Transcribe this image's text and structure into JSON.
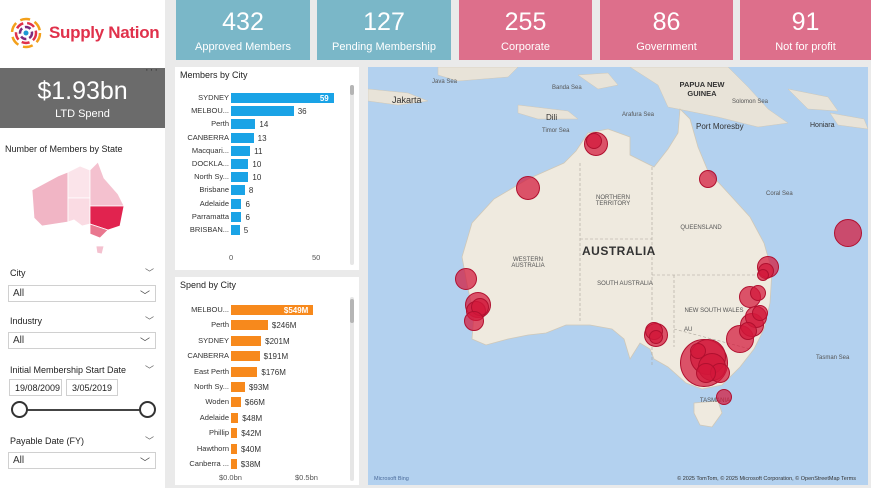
{
  "brand": {
    "name": "Supply Nation"
  },
  "ltd": {
    "value": "$1.93bn",
    "label": "LTD Spend",
    "menu": "···"
  },
  "kpis": [
    {
      "value": "432",
      "label": "Approved Members",
      "color": "#7ab7c8"
    },
    {
      "value": "127",
      "label": "Pending Membership",
      "color": "#7ab7c8"
    },
    {
      "value": "255",
      "label": "Corporate",
      "color": "#dd6f8b"
    },
    {
      "value": "86",
      "label": "Government",
      "color": "#dd6f8b"
    },
    {
      "value": "91",
      "label": "Not for profit",
      "color": "#dd6f8b"
    }
  ],
  "state_map": {
    "title": "Number of Members by State"
  },
  "slicers": {
    "city": {
      "label": "City",
      "value": "All"
    },
    "industry": {
      "label": "Industry",
      "value": "All"
    },
    "membership_date": {
      "label": "Initial Membership Start Date",
      "start": "19/08/2009",
      "end": "3/05/2019"
    },
    "payable_date": {
      "label": "Payable Date (FY)",
      "value": "All"
    }
  },
  "members_by_city": {
    "title": "Members by City",
    "axis_ticks": [
      "0",
      "50"
    ],
    "chart_data": {
      "type": "bar",
      "orientation": "horizontal",
      "color": "#1aa3e6",
      "categories": [
        "SYDNEY",
        "MELBOU...",
        "Perth",
        "CANBERRA",
        "Macquari...",
        "DOCKLA...",
        "North Sy...",
        "Brisbane",
        "Adelaide",
        "Parramatta",
        "BRISBAN..."
      ],
      "values": [
        59,
        36,
        14,
        13,
        11,
        10,
        10,
        8,
        6,
        6,
        5
      ],
      "labels": [
        "59",
        "36",
        "14",
        "13",
        "11",
        "10",
        "10",
        "8",
        "6",
        "6",
        "5"
      ],
      "xlim": [
        0,
        62
      ]
    }
  },
  "spend_by_city": {
    "title": "Spend by City",
    "axis_ticks": [
      "$0.0bn",
      "$0.5bn"
    ],
    "chart_data": {
      "type": "bar",
      "orientation": "horizontal",
      "color": "#f7891c",
      "categories": [
        "MELBOU...",
        "Perth",
        "SYDNEY",
        "CANBERRA",
        "East Perth",
        "North Sy...",
        "Woden",
        "Adelaide",
        "Phillip",
        "Hawthorn",
        "Canberra ..."
      ],
      "values": [
        549,
        246,
        201,
        191,
        176,
        93,
        66,
        48,
        42,
        40,
        38
      ],
      "labels": [
        "$549M",
        "$246M",
        "$201M",
        "$191M",
        "$176M",
        "$93M",
        "$66M",
        "$48M",
        "$42M",
        "$40M",
        "$38M"
      ],
      "xlim": [
        0,
        560
      ]
    }
  },
  "map": {
    "country": "AUSTRALIA",
    "regions": [
      "WESTERN AUSTRALIA",
      "NORTHERN TERRITORY",
      "QUEENSLAND",
      "SOUTH AUSTRALIA",
      "NEW SOUTH WALES",
      "TASMANIA",
      "AU"
    ],
    "places": [
      "Jakarta",
      "Dili",
      "Port Moresby",
      "Honiara",
      "PAPUA NEW GUINEA"
    ],
    "seas": [
      "Java Sea",
      "Banda Sea",
      "Arafura Sea",
      "Timor Sea",
      "Solomon Sea",
      "Coral Sea",
      "Tasman Sea"
    ],
    "attribution": "© 2025 TomTom, © 2025 Microsoft Corporation, © OpenStreetMap  Terms",
    "provider": "Microsoft Bing"
  }
}
